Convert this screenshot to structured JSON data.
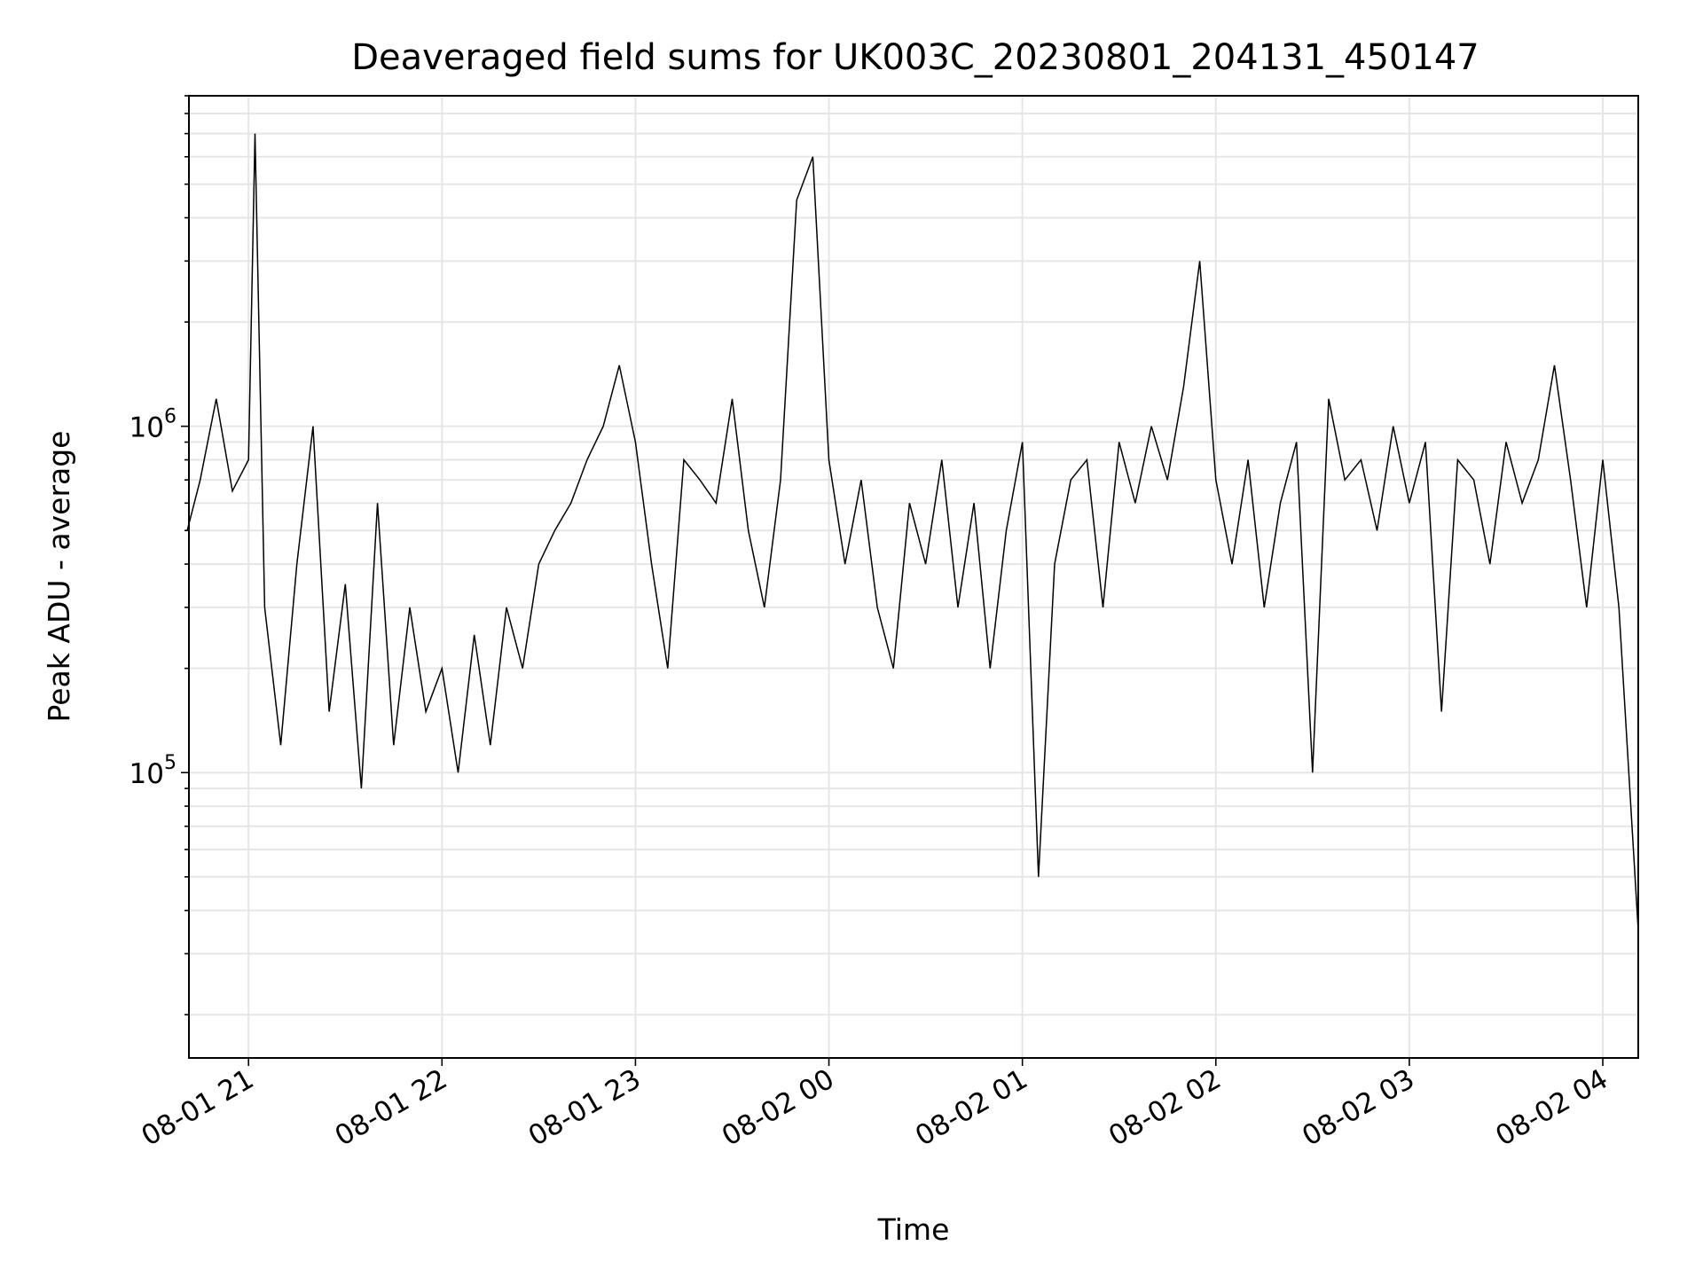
{
  "chart_data": {
    "type": "line",
    "title": "Deaveraged field sums for UK003C_20230801_204131_450147",
    "xlabel": "Time",
    "ylabel": "Peak ADU - average",
    "yscale": "log",
    "ylim": [
      15000,
      9000000
    ],
    "xlim": [
      "2023-08-01 20:41:31",
      "2023-08-02 04:11:00"
    ],
    "x_ticks": [
      "08-01 21",
      "08-01 22",
      "08-01 23",
      "08-02 00",
      "08-02 01",
      "08-02 02",
      "08-02 03",
      "08-02 04"
    ],
    "x_tick_times": [
      "2023-08-01 21:00",
      "2023-08-01 22:00",
      "2023-08-01 23:00",
      "2023-08-02 00:00",
      "2023-08-02 01:00",
      "2023-08-02 02:00",
      "2023-08-02 03:00",
      "2023-08-02 04:00"
    ],
    "y_ticks": [
      {
        "base": "10",
        "exp": "5",
        "value": 100000
      },
      {
        "base": "10",
        "exp": "6",
        "value": 1000000
      }
    ],
    "grid": true,
    "legend": "none",
    "colors": {
      "line": "#000000",
      "grid": "#e6e6e6"
    },
    "series": [
      {
        "x": [
          "2023-08-01 20:41",
          "2023-08-01 20:45",
          "2023-08-01 20:50",
          "2023-08-01 20:55",
          "2023-08-01 21:00",
          "2023-08-01 21:02",
          "2023-08-01 21:05",
          "2023-08-01 21:10",
          "2023-08-01 21:15",
          "2023-08-01 21:20",
          "2023-08-01 21:25",
          "2023-08-01 21:30",
          "2023-08-01 21:35",
          "2023-08-01 21:40",
          "2023-08-01 21:45",
          "2023-08-01 21:50",
          "2023-08-01 21:55",
          "2023-08-01 22:00",
          "2023-08-01 22:05",
          "2023-08-01 22:10",
          "2023-08-01 22:15",
          "2023-08-01 22:20",
          "2023-08-01 22:25",
          "2023-08-01 22:30",
          "2023-08-01 22:35",
          "2023-08-01 22:40",
          "2023-08-01 22:45",
          "2023-08-01 22:50",
          "2023-08-01 22:55",
          "2023-08-01 23:00",
          "2023-08-01 23:05",
          "2023-08-01 23:10",
          "2023-08-01 23:15",
          "2023-08-01 23:20",
          "2023-08-01 23:25",
          "2023-08-01 23:30",
          "2023-08-01 23:35",
          "2023-08-01 23:40",
          "2023-08-01 23:45",
          "2023-08-01 23:50",
          "2023-08-01 23:55",
          "2023-08-02 00:00",
          "2023-08-02 00:05",
          "2023-08-02 00:10",
          "2023-08-02 00:15",
          "2023-08-02 00:20",
          "2023-08-02 00:25",
          "2023-08-02 00:30",
          "2023-08-02 00:35",
          "2023-08-02 00:40",
          "2023-08-02 00:45",
          "2023-08-02 00:50",
          "2023-08-02 00:55",
          "2023-08-02 01:00",
          "2023-08-02 01:05",
          "2023-08-02 01:10",
          "2023-08-02 01:15",
          "2023-08-02 01:20",
          "2023-08-02 01:25",
          "2023-08-02 01:30",
          "2023-08-02 01:35",
          "2023-08-02 01:40",
          "2023-08-02 01:45",
          "2023-08-02 01:50",
          "2023-08-02 01:55",
          "2023-08-02 02:00",
          "2023-08-02 02:05",
          "2023-08-02 02:10",
          "2023-08-02 02:15",
          "2023-08-02 02:20",
          "2023-08-02 02:25",
          "2023-08-02 02:30",
          "2023-08-02 02:35",
          "2023-08-02 02:40",
          "2023-08-02 02:45",
          "2023-08-02 02:50",
          "2023-08-02 02:55",
          "2023-08-02 03:00",
          "2023-08-02 03:05",
          "2023-08-02 03:10",
          "2023-08-02 03:15",
          "2023-08-02 03:20",
          "2023-08-02 03:25",
          "2023-08-02 03:30",
          "2023-08-02 03:35",
          "2023-08-02 03:40",
          "2023-08-02 03:45",
          "2023-08-02 03:50",
          "2023-08-02 03:55",
          "2023-08-02 04:00",
          "2023-08-02 04:05",
          "2023-08-02 04:11"
        ],
        "y": [
          500000,
          700000,
          1200000,
          650000,
          800000,
          7000000,
          300000,
          120000,
          400000,
          1000000,
          150000,
          350000,
          90000,
          600000,
          120000,
          300000,
          150000,
          200000,
          100000,
          250000,
          120000,
          300000,
          200000,
          400000,
          500000,
          600000,
          800000,
          1000000,
          1500000,
          900000,
          400000,
          200000,
          800000,
          700000,
          600000,
          1200000,
          500000,
          300000,
          700000,
          4500000,
          6000000,
          800000,
          400000,
          700000,
          300000,
          200000,
          600000,
          400000,
          800000,
          300000,
          600000,
          200000,
          500000,
          900000,
          50000,
          400000,
          700000,
          800000,
          300000,
          900000,
          600000,
          1000000,
          700000,
          1300000,
          3000000,
          700000,
          400000,
          800000,
          300000,
          600000,
          900000,
          100000,
          1200000,
          700000,
          800000,
          500000,
          1000000,
          600000,
          900000,
          150000,
          800000,
          700000,
          400000,
          900000,
          600000,
          800000,
          1500000,
          700000,
          300000,
          800000,
          300000,
          35000
        ]
      }
    ]
  }
}
